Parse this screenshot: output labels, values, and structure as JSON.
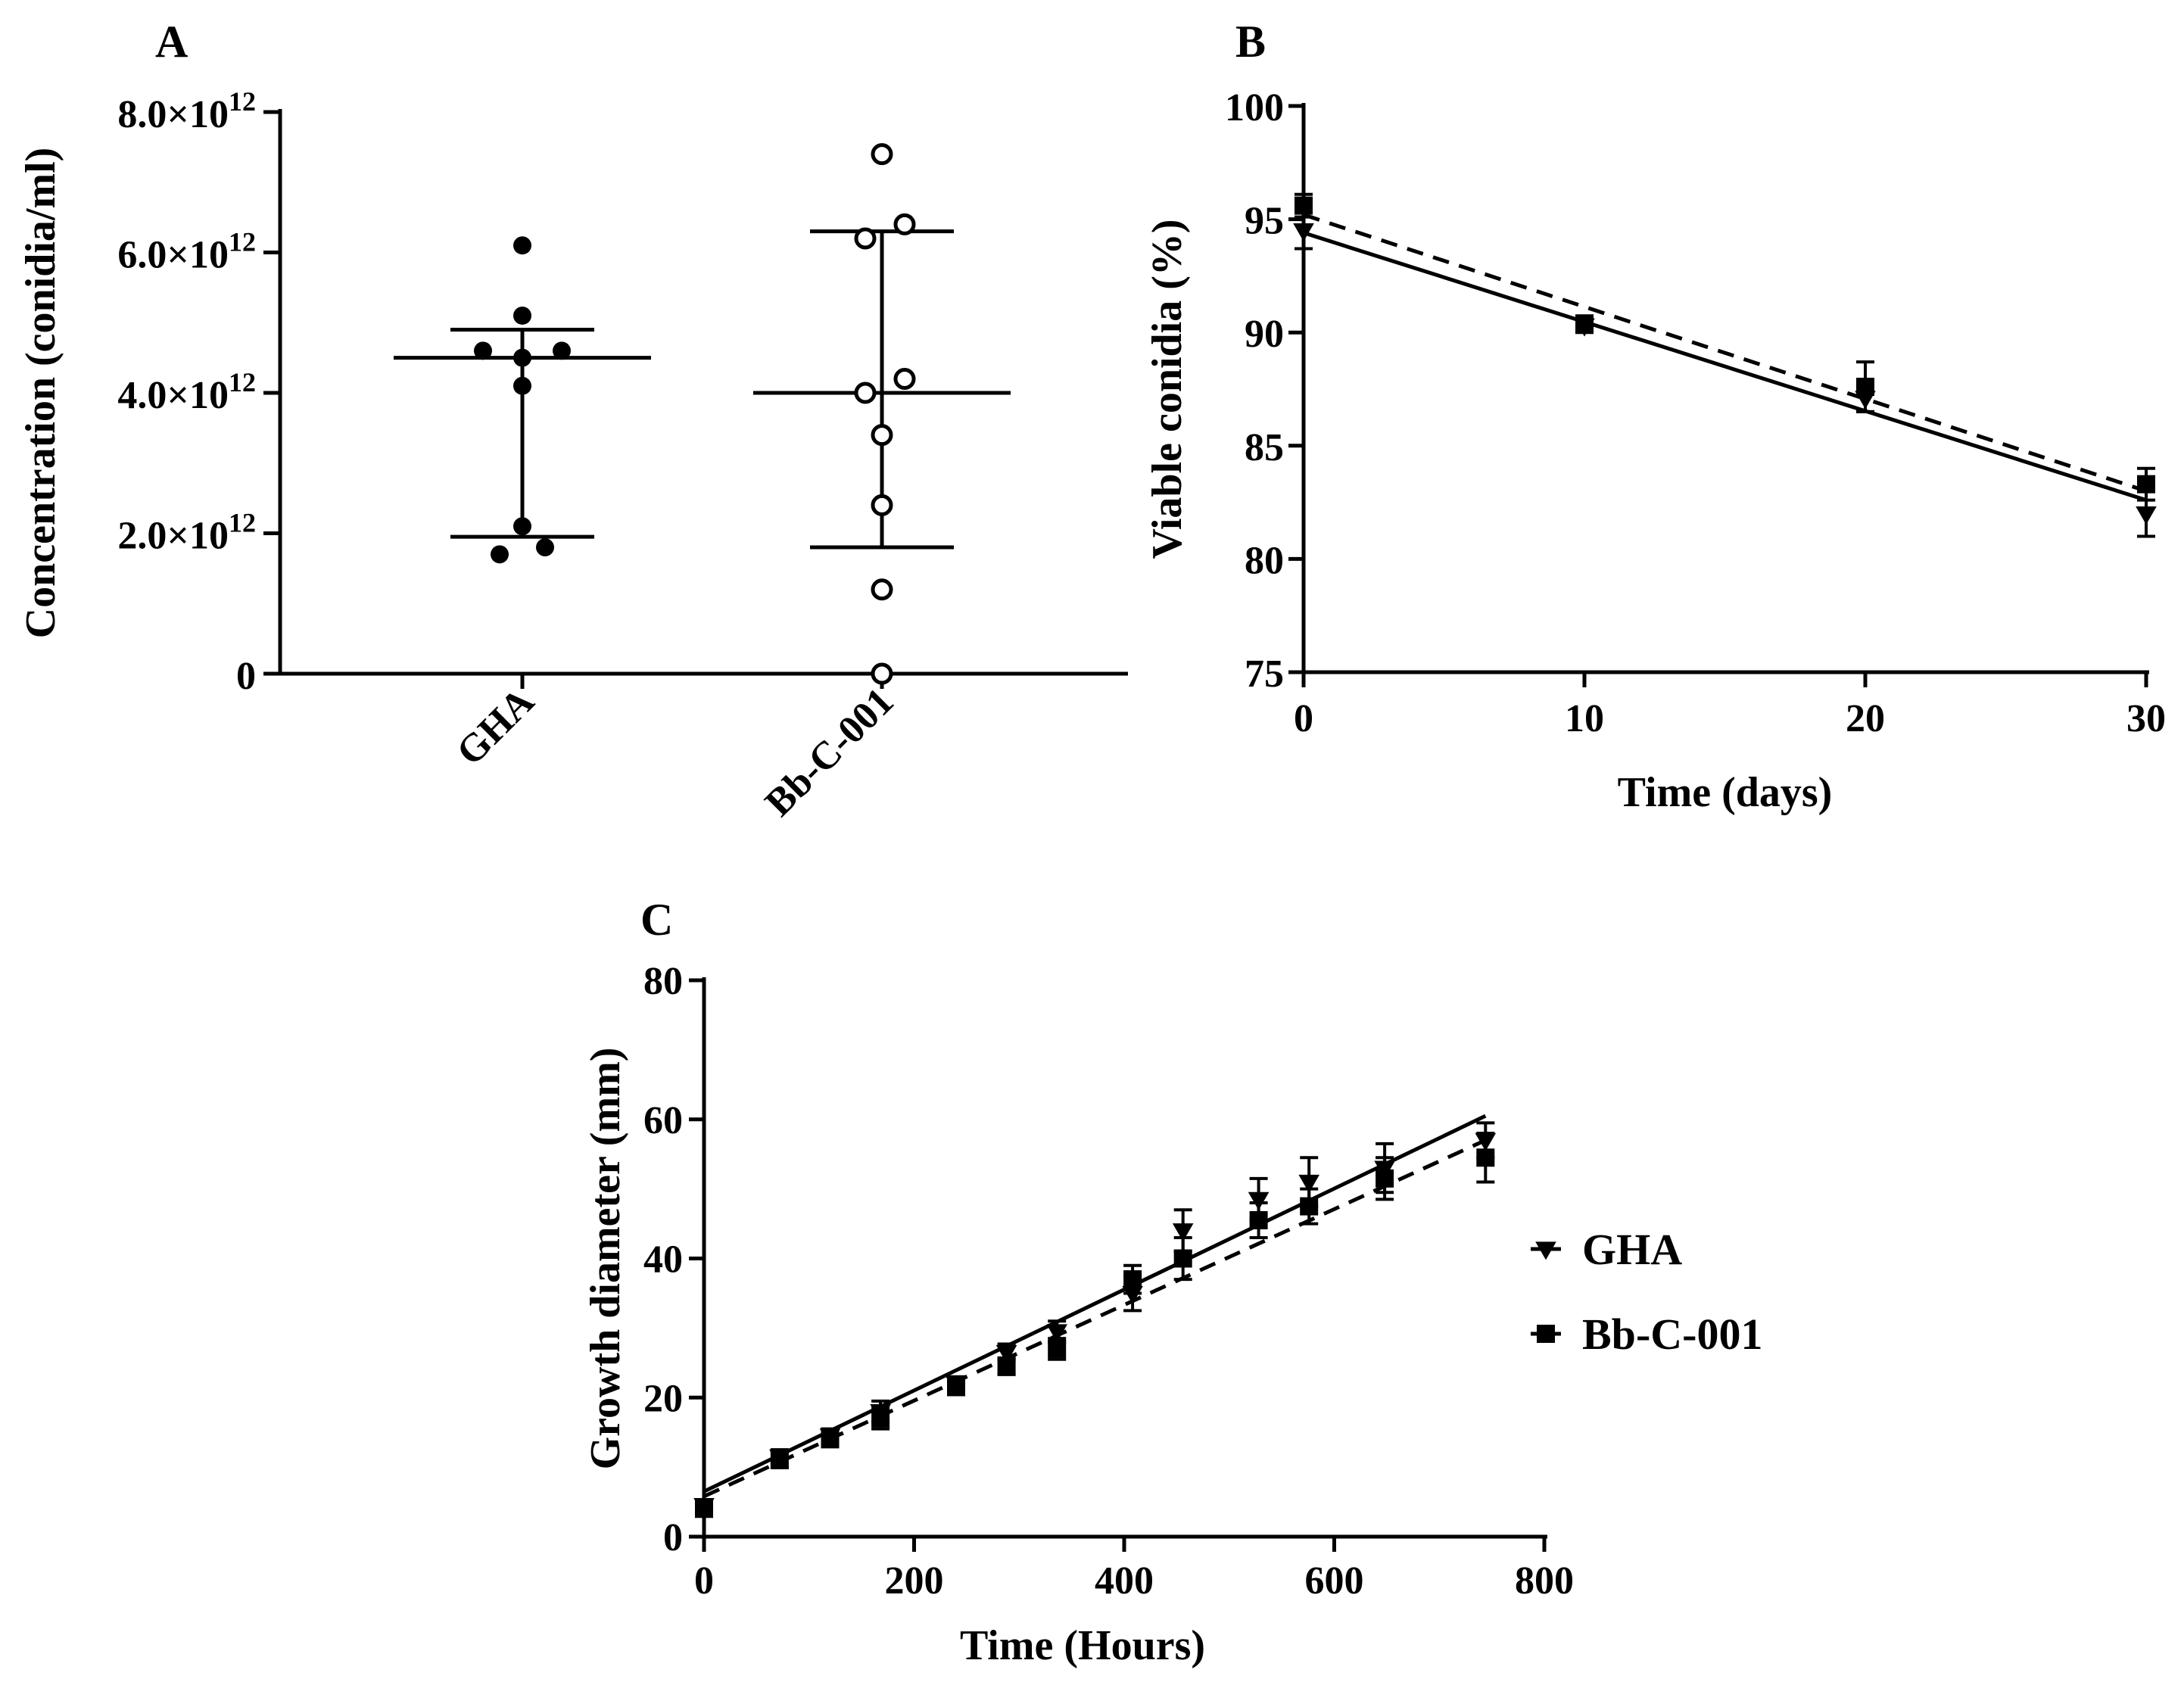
{
  "chart_data": [
    {
      "panel": "A",
      "type": "scatter",
      "ylabel": "Concentration (conidia/ml)",
      "ylim": [
        0,
        8000000000000.0
      ],
      "y_ticks": [
        {
          "value": 0,
          "mantissa": "0",
          "exp": ""
        },
        {
          "value": 2000000000000.0,
          "mantissa": "2.0×10",
          "exp": "12"
        },
        {
          "value": 4000000000000.0,
          "mantissa": "4.0×10",
          "exp": "12"
        },
        {
          "value": 6000000000000.0,
          "mantissa": "6.0×10",
          "exp": "12"
        },
        {
          "value": 8000000000000.0,
          "mantissa": "8.0×10",
          "exp": "12"
        }
      ],
      "categories": [
        "GHA",
        "Bb-C-001"
      ],
      "series": [
        {
          "category": "GHA",
          "marker": "filled-circle",
          "values": [
            6100000000000.0,
            5100000000000.0,
            4600000000000.0,
            4500000000000.0,
            4600000000000.0,
            4100000000000.0,
            2100000000000.0,
            1700000000000.0,
            1800000000000.0
          ],
          "mean": 4500000000000.0,
          "sd_low": 1950000000000.0,
          "sd_high": 4900000000000.0
        },
        {
          "category": "Bb-C-001",
          "marker": "open-circle",
          "values": [
            7400000000000.0,
            6400000000000.0,
            6200000000000.0,
            4200000000000.0,
            4000000000000.0,
            3400000000000.0,
            2400000000000.0,
            1200000000000.0,
            0.0
          ],
          "mean": 4000000000000.0,
          "sd_low": 1800000000000.0,
          "sd_high": 6300000000000.0
        }
      ]
    },
    {
      "panel": "B",
      "type": "line",
      "xlabel": "Time (days)",
      "ylabel": "Viable conidia (%)",
      "xlim": [
        0,
        30
      ],
      "ylim": [
        75,
        100
      ],
      "x_ticks": [
        0,
        10,
        20,
        30
      ],
      "y_ticks": [
        75,
        80,
        85,
        90,
        95,
        100
      ],
      "series": [
        {
          "legend": "GHA",
          "marker": "down-triangle",
          "line": "solid",
          "x": [
            0,
            10,
            20,
            30
          ],
          "y": [
            94.5,
            90.3,
            87.1,
            82.0
          ],
          "err": [
            0.8,
            0.3,
            0.6,
            1.0
          ],
          "fit": [
            [
              0,
              94.4
            ],
            [
              30,
              82.6
            ]
          ]
        },
        {
          "legend": "Bb-C-001",
          "marker": "square",
          "line": "dashed",
          "x": [
            0,
            10,
            20,
            30
          ],
          "y": [
            95.6,
            90.4,
            87.6,
            83.3
          ],
          "err": [
            0.5,
            0.3,
            1.1,
            0.7
          ],
          "fit": [
            [
              0,
              95.2
            ],
            [
              30,
              83.0
            ]
          ]
        }
      ]
    },
    {
      "panel": "C",
      "type": "line",
      "xlabel": "Time (Hours)",
      "ylabel": "Growth diameter (mm)",
      "xlim": [
        0,
        800
      ],
      "ylim": [
        0,
        80
      ],
      "x_ticks": [
        0,
        200,
        400,
        600,
        800
      ],
      "y_ticks": [
        0,
        20,
        40,
        60,
        80
      ],
      "legend_position": "right",
      "series": [
        {
          "name": "GHA",
          "marker": "down-triangle",
          "line": "solid",
          "x": [
            0,
            72,
            120,
            168,
            240,
            288,
            336,
            408,
            456,
            528,
            576,
            648,
            744
          ],
          "y": [
            4.5,
            11.5,
            14.5,
            18,
            22,
            26.5,
            29.5,
            35,
            44,
            48.5,
            51,
            53,
            57
          ],
          "err": [
            0.8,
            1,
            1,
            1.5,
            1,
            1.2,
            1.5,
            2.5,
            3,
            3,
            3.5,
            3.5,
            2.5
          ],
          "fit": [
            [
              0,
              6.5
            ],
            [
              744,
              60.5
            ]
          ]
        },
        {
          "name": "Bb-C-001",
          "marker": "square",
          "line": "dashed",
          "x": [
            0,
            72,
            120,
            168,
            240,
            288,
            336,
            408,
            456,
            528,
            576,
            648,
            744
          ],
          "y": [
            4,
            11,
            14,
            17,
            21.5,
            24.5,
            27,
            37,
            40,
            45.5,
            47.5,
            51.5,
            54.5
          ],
          "err": [
            0.8,
            1,
            1,
            1.5,
            1,
            1.2,
            1.5,
            2,
            3,
            2.5,
            2.5,
            3,
            3.5
          ],
          "fit": [
            [
              0,
              5.8
            ],
            [
              744,
              57
            ]
          ]
        }
      ]
    }
  ]
}
